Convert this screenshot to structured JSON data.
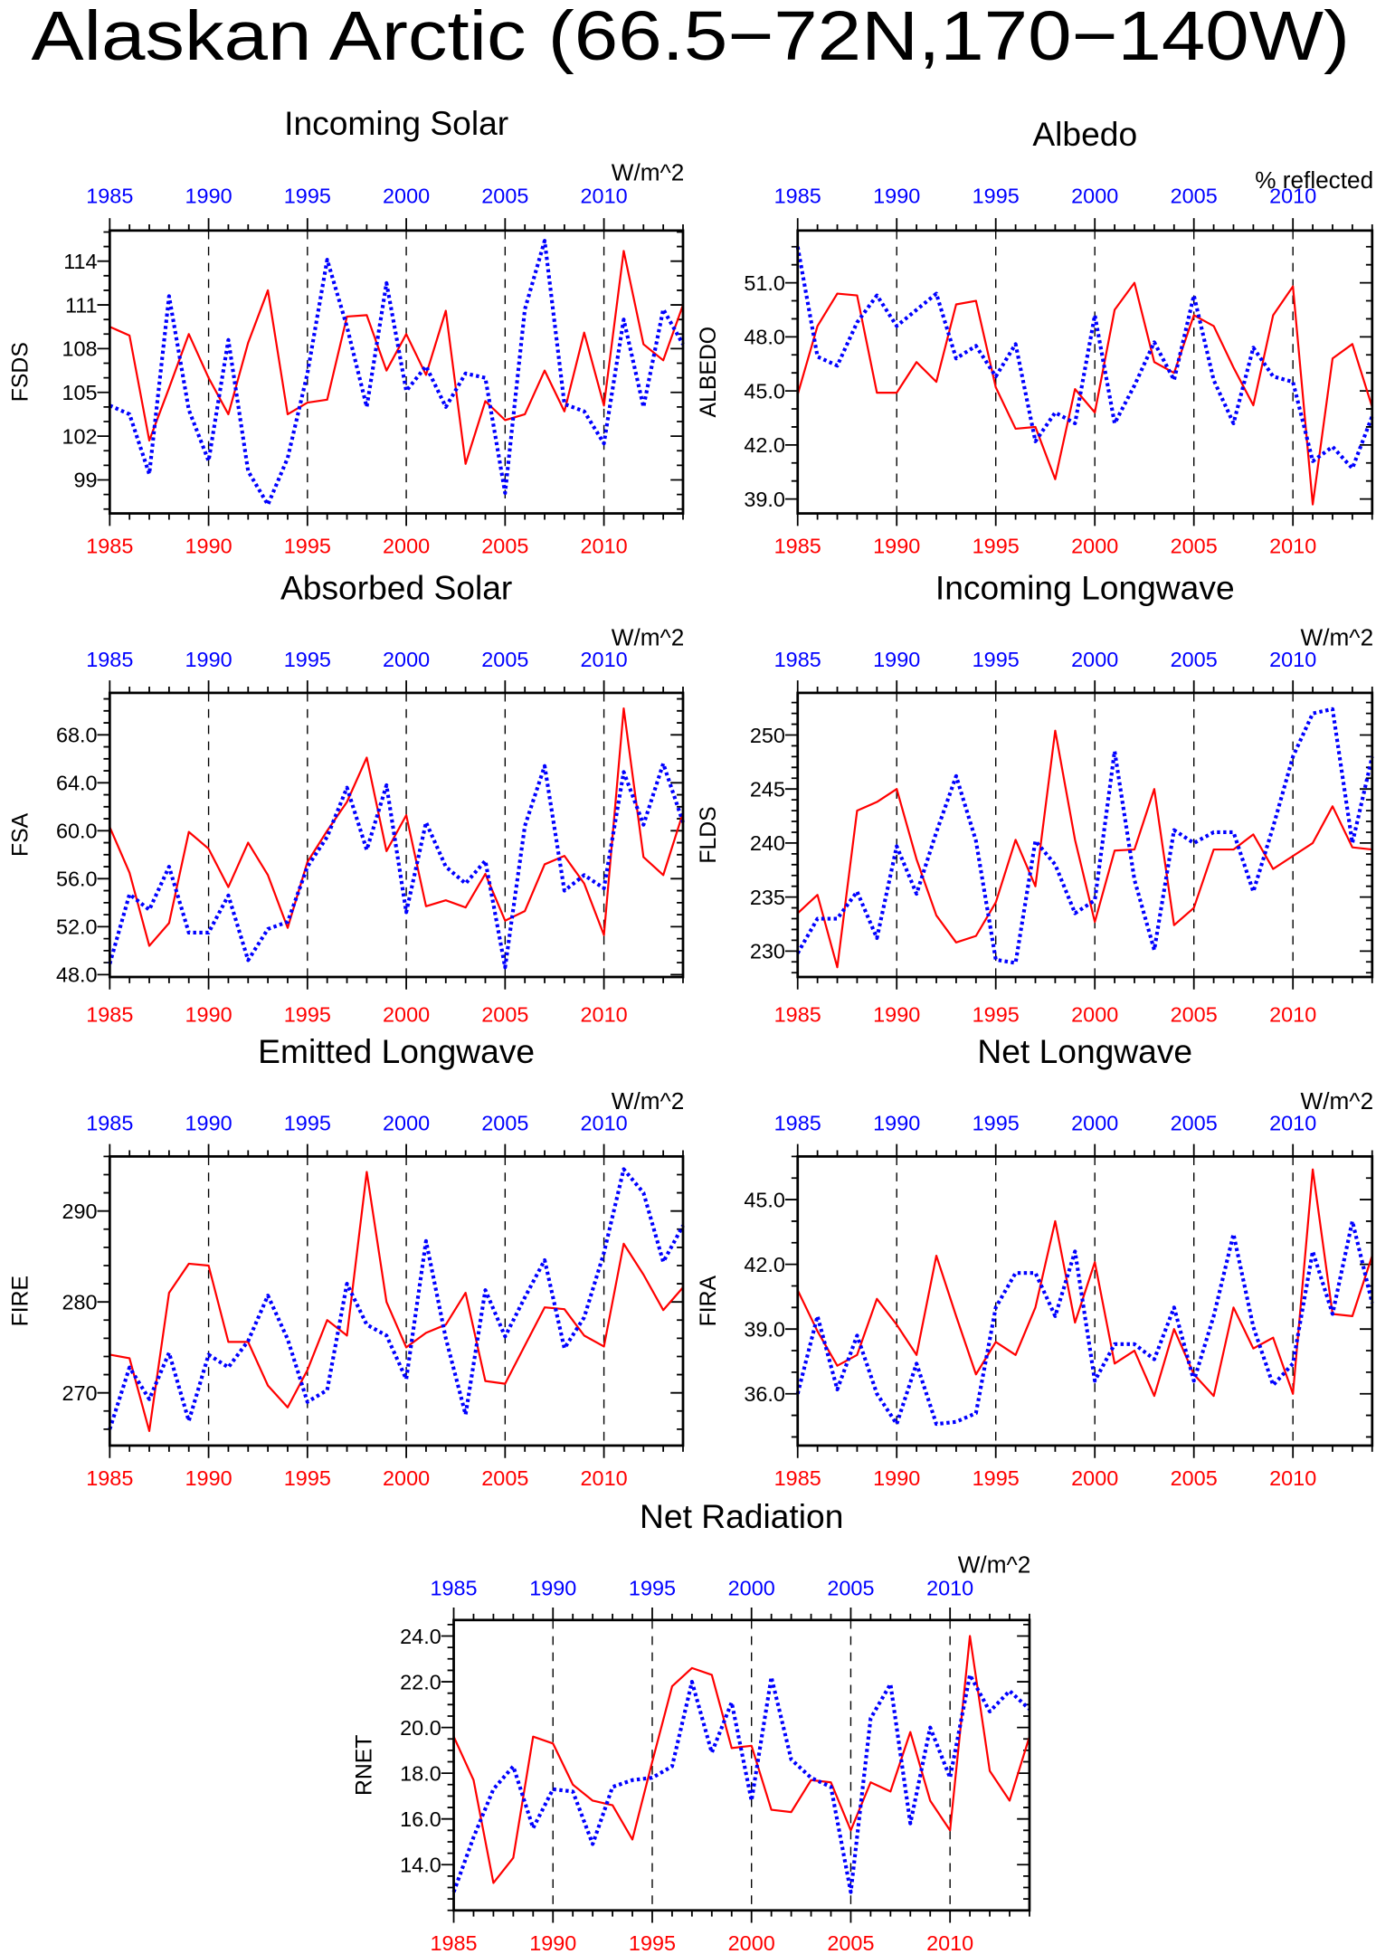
{
  "figure": {
    "title": "Alaskan Arctic (66.5−72N,170−140W)"
  },
  "colors": {
    "red_series": "#ff0000",
    "blue_series": "#0000ff",
    "axes": "#000000",
    "background": "#ffffff"
  },
  "chart_data": [
    {
      "type": "line",
      "title": "Incoming Solar",
      "units": "W/m^2",
      "ylabel": "FSDS",
      "x": [
        1985,
        1986,
        1987,
        1988,
        1989,
        1990,
        1991,
        1992,
        1993,
        1994,
        1995,
        1996,
        1997,
        1998,
        1999,
        2000,
        2001,
        2002,
        2003,
        2004,
        2005,
        2006,
        2007,
        2008,
        2009,
        2010,
        2011,
        2012,
        2013,
        2014
      ],
      "xticks": [
        "1985",
        "1990",
        "1995",
        "2000",
        "2005",
        "2010"
      ],
      "xtick_colors": {
        "bottom": "#ff0000",
        "top": "#0000ff"
      },
      "xlim": [
        1985,
        2014
      ],
      "ylim": [
        96.7,
        116.1
      ],
      "yticks": [
        "99",
        "102",
        "105",
        "108",
        "111",
        "114"
      ],
      "xgrid_lines": [
        1990,
        1995,
        2000,
        2005,
        2010
      ],
      "series": [
        {
          "color": "#ff0000",
          "line_style": "solid",
          "values": [
            109.5,
            108.9,
            101.7,
            105.3,
            109.0,
            106.0,
            103.5,
            108.4,
            112.0,
            103.5,
            104.3,
            104.5,
            110.2,
            110.3,
            106.5,
            109.0,
            106.2,
            110.6,
            100.1,
            104.4,
            103.1,
            103.5,
            106.5,
            103.7,
            109.1,
            104.1,
            114.7,
            108.3,
            107.2,
            111.0
          ]
        },
        {
          "color": "#0000ff",
          "line_style": "dotted",
          "values": [
            104.1,
            103.5,
            99.4,
            111.6,
            103.8,
            100.3,
            108.6,
            99.6,
            97.3,
            100.5,
            106.3,
            114.1,
            109.5,
            104.0,
            112.5,
            105.1,
            106.8,
            104.0,
            106.3,
            106.0,
            98.1,
            110.7,
            115.4,
            104.2,
            103.7,
            101.5,
            110.0,
            104.0,
            110.7,
            108.3
          ]
        }
      ]
    },
    {
      "type": "line",
      "title": "Albedo",
      "units": "% reflected",
      "ylabel": "ALBEDO",
      "x": [
        1985,
        1986,
        1987,
        1988,
        1989,
        1990,
        1991,
        1992,
        1993,
        1994,
        1995,
        1996,
        1997,
        1998,
        1999,
        2000,
        2001,
        2002,
        2003,
        2004,
        2005,
        2006,
        2007,
        2008,
        2009,
        2010,
        2011,
        2012,
        2013,
        2014
      ],
      "xticks": [
        "1985",
        "1990",
        "1995",
        "2000",
        "2005",
        "2010"
      ],
      "xtick_colors": {
        "bottom": "#ff0000",
        "top": "#0000ff"
      },
      "xlim": [
        1985,
        2014
      ],
      "ylim": [
        38.2,
        53.9
      ],
      "yticks": [
        "39.0",
        "42.0",
        "45.0",
        "48.0",
        "51.0"
      ],
      "xgrid_lines": [
        1990,
        1995,
        2000,
        2005,
        2010
      ],
      "series": [
        {
          "color": "#ff0000",
          "line_style": "solid",
          "values": [
            44.8,
            48.6,
            50.4,
            50.3,
            44.9,
            44.9,
            46.6,
            45.5,
            49.8,
            50.0,
            45.2,
            42.9,
            43.0,
            40.1,
            45.1,
            43.8,
            49.5,
            51.0,
            46.6,
            46.0,
            49.2,
            48.6,
            46.3,
            44.2,
            49.2,
            50.8,
            38.7,
            46.8,
            47.6,
            44.1
          ]
        },
        {
          "color": "#0000ff",
          "line_style": "dotted",
          "values": [
            53.0,
            46.9,
            46.4,
            48.8,
            50.3,
            48.6,
            49.5,
            50.4,
            46.8,
            47.5,
            45.8,
            47.6,
            42.2,
            43.8,
            43.2,
            49.2,
            43.2,
            45.3,
            47.7,
            45.6,
            50.3,
            45.6,
            43.2,
            47.4,
            45.8,
            45.5,
            41.1,
            41.9,
            40.7,
            43.6
          ]
        }
      ]
    },
    {
      "type": "line",
      "title": "Absorbed Solar",
      "units": "W/m^2",
      "ylabel": "FSA",
      "x": [
        1985,
        1986,
        1987,
        1988,
        1989,
        1990,
        1991,
        1992,
        1993,
        1994,
        1995,
        1996,
        1997,
        1998,
        1999,
        2000,
        2001,
        2002,
        2003,
        2004,
        2005,
        2006,
        2007,
        2008,
        2009,
        2010,
        2011,
        2012,
        2013,
        2014
      ],
      "xticks": [
        "1985",
        "1990",
        "1995",
        "2000",
        "2005",
        "2010"
      ],
      "xtick_colors": {
        "bottom": "#ff0000",
        "top": "#0000ff"
      },
      "xlim": [
        1985,
        2014
      ],
      "ylim": [
        47.8,
        71.5
      ],
      "yticks": [
        "48.0",
        "52.0",
        "56.0",
        "60.0",
        "64.0",
        "68.0"
      ],
      "xgrid_lines": [
        1990,
        1995,
        2000,
        2005,
        2010
      ],
      "series": [
        {
          "color": "#ff0000",
          "line_style": "solid",
          "values": [
            60.3,
            56.5,
            50.4,
            52.3,
            59.9,
            58.5,
            55.3,
            59.0,
            56.3,
            51.9,
            57.4,
            60.0,
            62.4,
            66.1,
            58.3,
            61.3,
            53.7,
            54.2,
            53.6,
            56.4,
            52.5,
            53.3,
            57.2,
            57.9,
            55.6,
            51.3,
            70.2,
            57.8,
            56.3,
            61.5
          ]
        },
        {
          "color": "#0000ff",
          "line_style": "dotted",
          "values": [
            48.9,
            54.7,
            53.4,
            57.0,
            51.5,
            51.5,
            54.6,
            49.2,
            51.8,
            52.4,
            57.0,
            59.5,
            63.6,
            58.4,
            63.8,
            53.2,
            60.7,
            57.0,
            55.6,
            57.5,
            48.6,
            60.4,
            65.4,
            55.0,
            56.3,
            55.2,
            64.9,
            60.5,
            65.6,
            60.7
          ]
        }
      ]
    },
    {
      "type": "line",
      "title": "Incoming Longwave",
      "units": "W/m^2",
      "ylabel": "FLDS",
      "x": [
        1985,
        1986,
        1987,
        1988,
        1989,
        1990,
        1991,
        1992,
        1993,
        1994,
        1995,
        1996,
        1997,
        1998,
        1999,
        2000,
        2001,
        2002,
        2003,
        2004,
        2005,
        2006,
        2007,
        2008,
        2009,
        2010,
        2011,
        2012,
        2013,
        2014
      ],
      "xticks": [
        "1985",
        "1990",
        "1995",
        "2000",
        "2005",
        "2010"
      ],
      "xtick_colors": {
        "bottom": "#ff0000",
        "top": "#0000ff"
      },
      "xlim": [
        1985,
        2014
      ],
      "ylim": [
        227.6,
        253.9
      ],
      "yticks": [
        "230",
        "235",
        "240",
        "245",
        "250"
      ],
      "xgrid_lines": [
        1990,
        1995,
        2000,
        2005,
        2010
      ],
      "series": [
        {
          "color": "#ff0000",
          "line_style": "solid",
          "values": [
            233.5,
            235.2,
            228.5,
            243.0,
            243.8,
            245.0,
            238.5,
            233.3,
            230.8,
            231.4,
            234.5,
            240.3,
            236.0,
            250.4,
            240.3,
            232.7,
            239.3,
            239.4,
            245.0,
            232.4,
            234.0,
            239.4,
            239.4,
            240.8,
            237.6,
            238.8,
            240.0,
            243.4,
            239.6,
            239.4
          ]
        },
        {
          "color": "#0000ff",
          "line_style": "dotted",
          "values": [
            229.8,
            233.0,
            233.0,
            235.5,
            231.2,
            239.7,
            235.3,
            241.0,
            246.2,
            240.2,
            229.2,
            228.9,
            240.2,
            238.0,
            233.5,
            234.7,
            248.5,
            236.6,
            230.1,
            241.2,
            240.0,
            241.0,
            241.0,
            235.5,
            241.5,
            248.0,
            252.0,
            252.4,
            240.0,
            248.0
          ]
        }
      ]
    },
    {
      "type": "line",
      "title": "Emitted Longwave",
      "units": "W/m^2",
      "ylabel": "FIRE",
      "x": [
        1985,
        1986,
        1987,
        1988,
        1989,
        1990,
        1991,
        1992,
        1993,
        1994,
        1995,
        1996,
        1997,
        1998,
        1999,
        2000,
        2001,
        2002,
        2003,
        2004,
        2005,
        2006,
        2007,
        2008,
        2009,
        2010,
        2011,
        2012,
        2013,
        2014
      ],
      "xticks": [
        "1985",
        "1990",
        "1995",
        "2000",
        "2005",
        "2010"
      ],
      "xtick_colors": {
        "bottom": "#ff0000",
        "top": "#0000ff"
      },
      "xlim": [
        1985,
        2014
      ],
      "ylim": [
        264.2,
        296.0
      ],
      "yticks": [
        "270",
        "280",
        "290"
      ],
      "xgrid_lines": [
        1990,
        1995,
        2000,
        2005,
        2010
      ],
      "series": [
        {
          "color": "#ff0000",
          "line_style": "solid",
          "values": [
            274.2,
            273.8,
            265.8,
            281.0,
            284.2,
            284.0,
            275.6,
            275.6,
            270.8,
            268.4,
            272.5,
            278.0,
            276.3,
            294.3,
            280.0,
            275.0,
            276.6,
            277.5,
            281.0,
            271.3,
            271.0,
            275.2,
            279.4,
            279.2,
            276.3,
            275.1,
            286.4,
            283.0,
            279.1,
            281.6
          ]
        },
        {
          "color": "#0000ff",
          "line_style": "dotted",
          "values": [
            266.0,
            272.8,
            269.3,
            274.4,
            266.9,
            274.2,
            272.8,
            275.7,
            280.7,
            275.9,
            269.0,
            270.3,
            282.0,
            277.5,
            276.3,
            271.5,
            286.7,
            276.0,
            267.6,
            281.3,
            276.2,
            280.5,
            284.6,
            274.9,
            278.3,
            285.4,
            294.6,
            292.0,
            284.4,
            288.4
          ]
        }
      ]
    },
    {
      "type": "line",
      "title": "Net Longwave",
      "units": "W/m^2",
      "ylabel": "FIRA",
      "x": [
        1985,
        1986,
        1987,
        1988,
        1989,
        1990,
        1991,
        1992,
        1993,
        1994,
        1995,
        1996,
        1997,
        1998,
        1999,
        2000,
        2001,
        2002,
        2003,
        2004,
        2005,
        2006,
        2007,
        2008,
        2009,
        2010,
        2011,
        2012,
        2013,
        2014
      ],
      "xticks": [
        "1985",
        "1990",
        "1995",
        "2000",
        "2005",
        "2010"
      ],
      "xtick_colors": {
        "bottom": "#ff0000",
        "top": "#0000ff"
      },
      "xlim": [
        1985,
        2014
      ],
      "ylim": [
        33.6,
        47.0
      ],
      "yticks": [
        "36.0",
        "39.0",
        "42.0",
        "45.0"
      ],
      "xgrid_lines": [
        1990,
        1995,
        2000,
        2005,
        2010
      ],
      "series": [
        {
          "color": "#ff0000",
          "line_style": "solid",
          "values": [
            40.8,
            38.9,
            37.3,
            37.8,
            40.4,
            39.2,
            37.8,
            42.4,
            39.6,
            36.9,
            38.4,
            37.8,
            40.0,
            44.0,
            39.3,
            42.1,
            37.4,
            38.0,
            35.9,
            39.0,
            36.9,
            35.9,
            40.0,
            38.1,
            38.6,
            36.0,
            46.4,
            39.7,
            39.6,
            42.4
          ]
        },
        {
          "color": "#0000ff",
          "line_style": "dotted",
          "values": [
            36.0,
            39.6,
            36.2,
            38.7,
            36.0,
            34.6,
            37.4,
            34.6,
            34.7,
            35.1,
            40.0,
            41.6,
            41.6,
            39.6,
            42.6,
            36.6,
            38.3,
            38.3,
            37.6,
            40.0,
            36.6,
            39.6,
            43.4,
            39.1,
            36.4,
            37.4,
            42.6,
            39.7,
            44.0,
            40.2
          ]
        }
      ]
    },
    {
      "type": "line",
      "title": "Net Radiation",
      "units": "W/m^2",
      "ylabel": "RNET",
      "x": [
        1985,
        1986,
        1987,
        1988,
        1989,
        1990,
        1991,
        1992,
        1993,
        1994,
        1995,
        1996,
        1997,
        1998,
        1999,
        2000,
        2001,
        2002,
        2003,
        2004,
        2005,
        2006,
        2007,
        2008,
        2009,
        2010,
        2011,
        2012,
        2013,
        2014
      ],
      "xticks": [
        "1985",
        "1990",
        "1995",
        "2000",
        "2005",
        "2010"
      ],
      "xtick_colors": {
        "bottom": "#ff0000",
        "top": "#0000ff"
      },
      "xlim": [
        1985,
        2014
      ],
      "ylim": [
        12.0,
        24.7
      ],
      "yticks": [
        "14.0",
        "16.0",
        "18.0",
        "20.0",
        "22.0",
        "24.0"
      ],
      "xgrid_lines": [
        1990,
        1995,
        2000,
        2005,
        2010
      ],
      "series": [
        {
          "color": "#ff0000",
          "line_style": "solid",
          "values": [
            19.6,
            17.7,
            13.2,
            14.3,
            19.6,
            19.3,
            17.5,
            16.8,
            16.6,
            15.1,
            18.5,
            21.8,
            22.6,
            22.3,
            19.1,
            19.2,
            16.4,
            16.3,
            17.7,
            17.6,
            15.5,
            17.6,
            17.2,
            19.8,
            16.8,
            15.5,
            24.0,
            18.1,
            16.8,
            19.6
          ]
        },
        {
          "color": "#0000ff",
          "line_style": "dotted",
          "values": [
            12.8,
            15.2,
            17.3,
            18.3,
            15.6,
            17.3,
            17.2,
            14.9,
            17.4,
            17.7,
            17.8,
            18.3,
            22.0,
            18.9,
            21.1,
            16.8,
            22.2,
            18.6,
            17.8,
            17.4,
            12.8,
            20.4,
            21.9,
            15.8,
            20.0,
            17.8,
            22.3,
            20.7,
            21.6,
            20.8
          ]
        }
      ]
    }
  ]
}
